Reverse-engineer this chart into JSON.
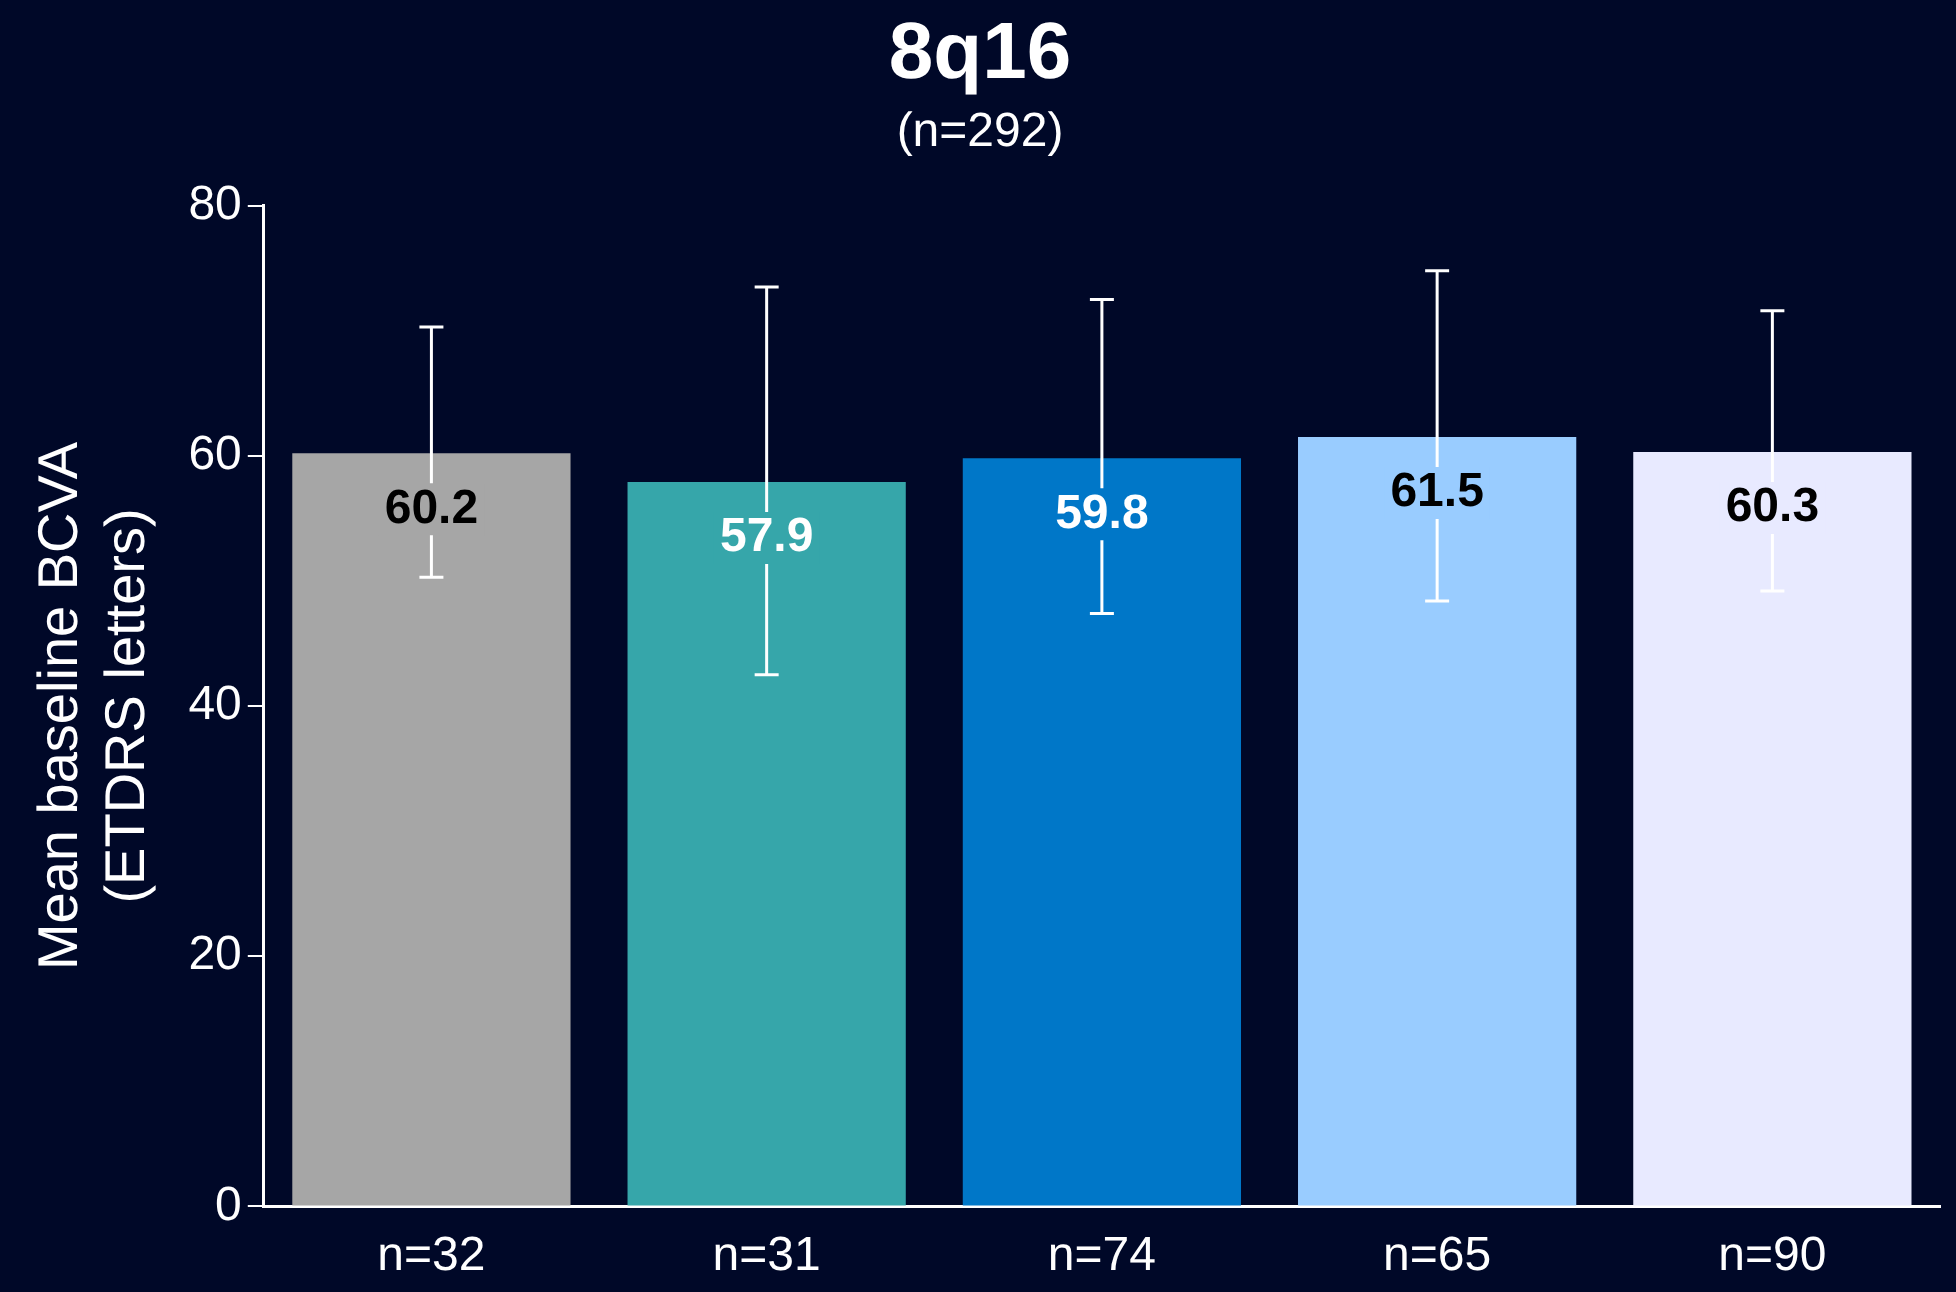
{
  "chart_data": {
    "type": "bar",
    "title": "8q16",
    "subtitle": "(n=292)",
    "ylabel": "Mean baseline BCVA\n(ETDRS letters)",
    "categories": [
      "n=32",
      "n=31",
      "n=74",
      "n=65",
      "n=90"
    ],
    "values": [
      60.2,
      57.9,
      59.8,
      61.5,
      60.3
    ],
    "colors": [
      "#a6a6a6",
      "#36a6aa",
      "#0077c8",
      "#99ccff",
      "#e8eaff"
    ],
    "errors": [
      [
        50.3,
        70.3
      ],
      [
        42.5,
        73.5
      ],
      [
        47.4,
        72.5
      ],
      [
        48.4,
        74.8
      ],
      [
        49.2,
        71.6
      ]
    ],
    "data_labels": true,
    "ylim": [
      0,
      80
    ],
    "yticks": [
      0,
      20,
      40,
      60,
      80
    ],
    "grid": false,
    "legend": false
  }
}
